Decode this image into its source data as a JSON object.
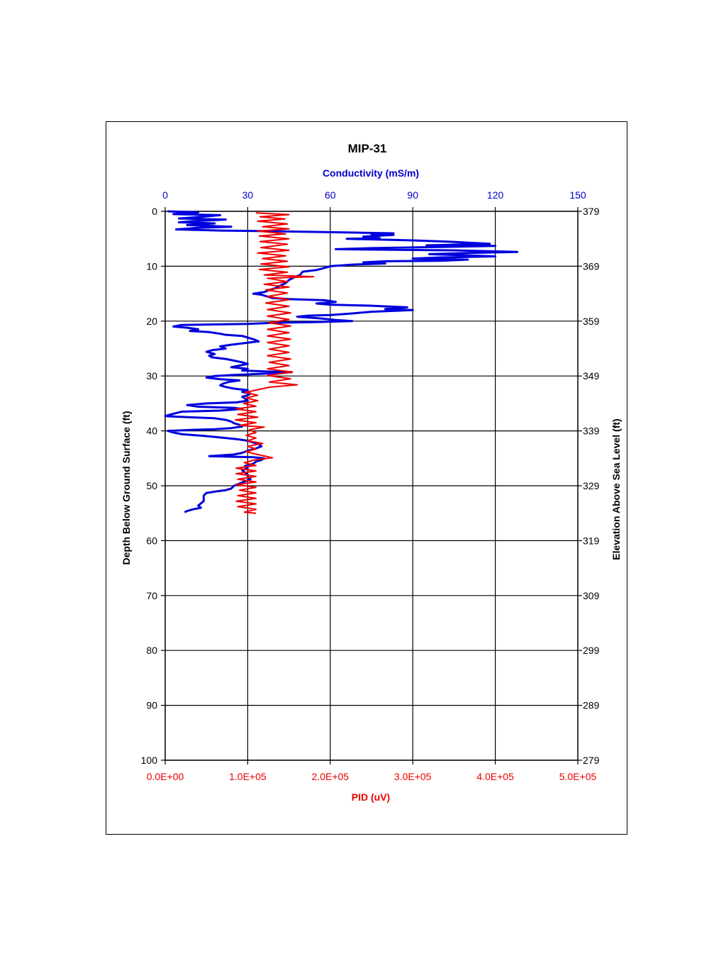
{
  "chart_data": {
    "type": "line",
    "title": "MIP-31",
    "top_axis": {
      "label": "Conductivity (mS/m)",
      "range": [
        0,
        150
      ],
      "ticks": [
        "0",
        "30",
        "60",
        "90",
        "120",
        "150"
      ],
      "color": "#0000cc"
    },
    "bottom_axis": {
      "label": "PID (uV)",
      "range": [
        0,
        500000
      ],
      "ticks": [
        "0.0E+00",
        "1.0E+05",
        "2.0E+05",
        "3.0E+05",
        "4.0E+05",
        "5.0E+05"
      ],
      "color": "#ee0000"
    },
    "left_axis": {
      "label": "Depth Below Ground Surface (ft)",
      "range": [
        0,
        100
      ],
      "inverted": true,
      "ticks": [
        "0",
        "10",
        "20",
        "30",
        "40",
        "50",
        "60",
        "70",
        "80",
        "90",
        "100"
      ]
    },
    "right_axis": {
      "label": "Elevation Above Sea Level (ft)",
      "ticks": [
        "379",
        "369",
        "359",
        "349",
        "339",
        "329",
        "319",
        "309",
        "299",
        "289",
        "279"
      ]
    },
    "grid": true,
    "series": [
      {
        "axis": "top",
        "color": "#0000dd",
        "points": [
          [
            1,
            0
          ],
          [
            12,
            0.2
          ],
          [
            3,
            0.5
          ],
          [
            20,
            0.7
          ],
          [
            13,
            1
          ],
          [
            5,
            1.3
          ],
          [
            22,
            1.5
          ],
          [
            10,
            1.8
          ],
          [
            5,
            2
          ],
          [
            18,
            2.2
          ],
          [
            8,
            2.5
          ],
          [
            24,
            2.8
          ],
          [
            12,
            3
          ],
          [
            4,
            3.3
          ],
          [
            20,
            3.5
          ],
          [
            36,
            3.6
          ],
          [
            60,
            3.8
          ],
          [
            72,
            3.9
          ],
          [
            83,
            4.0
          ],
          [
            75,
            4.2
          ],
          [
            83,
            4.3
          ],
          [
            72,
            4.6
          ],
          [
            78,
            4.9
          ],
          [
            66,
            5.0
          ],
          [
            90,
            5.3
          ],
          [
            102,
            5.5
          ],
          [
            118,
            5.9
          ],
          [
            95,
            6.2
          ],
          [
            120,
            6.3
          ],
          [
            100,
            6.5
          ],
          [
            75,
            6.7
          ],
          [
            62,
            6.9
          ],
          [
            105,
            7.1
          ],
          [
            128,
            7.4
          ],
          [
            110,
            7.6
          ],
          [
            96,
            7.8
          ],
          [
            108,
            8.0
          ],
          [
            120,
            8.2
          ],
          [
            100,
            8.4
          ],
          [
            90,
            8.6
          ],
          [
            110,
            8.8
          ],
          [
            100,
            9.0
          ],
          [
            80,
            9.1
          ],
          [
            72,
            9.3
          ],
          [
            80,
            9.5
          ],
          [
            68,
            9.7
          ],
          [
            60,
            10.0
          ],
          [
            58,
            10.3
          ],
          [
            55,
            10.7
          ],
          [
            50,
            11.0
          ],
          [
            49,
            11.6
          ],
          [
            47,
            12.0
          ],
          [
            45,
            12.5
          ],
          [
            44,
            13.0
          ],
          [
            42,
            13.5
          ],
          [
            40,
            14.0
          ],
          [
            38,
            14.3
          ],
          [
            36,
            14.7
          ],
          [
            32,
            15.0
          ],
          [
            35,
            15.2
          ],
          [
            37,
            15.5
          ],
          [
            39,
            15.8
          ],
          [
            45,
            16.0
          ],
          [
            58,
            16.2
          ],
          [
            62,
            16.5
          ],
          [
            55,
            16.8
          ],
          [
            60,
            17.0
          ],
          [
            75,
            17.2
          ],
          [
            88,
            17.5
          ],
          [
            80,
            17.8
          ],
          [
            90,
            18.0
          ],
          [
            75,
            18.3
          ],
          [
            68,
            18.6
          ],
          [
            60,
            18.9
          ],
          [
            52,
            19.0
          ],
          [
            48,
            19.2
          ],
          [
            56,
            19.5
          ],
          [
            62,
            19.8
          ],
          [
            68,
            20.0
          ],
          [
            54,
            20.2
          ],
          [
            40,
            20.3
          ],
          [
            30,
            20.5
          ],
          [
            20,
            20.6
          ],
          [
            6,
            20.7
          ],
          [
            3,
            21.0
          ],
          [
            8,
            21.2
          ],
          [
            12,
            21.5
          ],
          [
            9,
            21.8
          ],
          [
            16,
            22.0
          ],
          [
            20,
            22.3
          ],
          [
            22,
            22.5
          ],
          [
            28,
            22.7
          ],
          [
            30,
            23.0
          ],
          [
            32,
            23.3
          ],
          [
            34,
            23.7
          ],
          [
            29,
            24.0
          ],
          [
            24,
            24.3
          ],
          [
            20,
            24.6
          ],
          [
            22,
            25.0
          ],
          [
            17,
            25.3
          ],
          [
            15,
            25.6
          ],
          [
            18,
            26.0
          ],
          [
            16,
            26.3
          ],
          [
            17,
            26.6
          ],
          [
            22,
            26.9
          ],
          [
            25,
            27.2
          ],
          [
            28,
            27.5
          ],
          [
            30,
            27.8
          ],
          [
            27,
            28.1
          ],
          [
            24,
            28.4
          ],
          [
            30,
            28.7
          ],
          [
            28,
            29.0
          ],
          [
            38,
            29.2
          ],
          [
            46,
            29.3
          ],
          [
            35,
            29.6
          ],
          [
            25,
            29.8
          ],
          [
            18,
            30.0
          ],
          [
            15,
            30.3
          ],
          [
            20,
            30.6
          ],
          [
            27,
            30.8
          ],
          [
            23,
            31.1
          ],
          [
            21,
            31.4
          ],
          [
            20,
            31.7
          ],
          [
            22,
            32.0
          ],
          [
            25,
            32.3
          ],
          [
            30,
            32.6
          ],
          [
            28,
            32.9
          ],
          [
            31,
            33.2
          ],
          [
            30,
            33.5
          ],
          [
            28,
            33.8
          ],
          [
            29,
            34.1
          ],
          [
            30,
            34.5
          ],
          [
            26,
            34.8
          ],
          [
            15,
            35.0
          ],
          [
            8,
            35.3
          ],
          [
            12,
            35.6
          ],
          [
            25,
            35.8
          ],
          [
            28,
            36.0
          ],
          [
            20,
            36.3
          ],
          [
            6,
            36.5
          ],
          [
            2,
            37.0
          ],
          [
            0,
            37.3
          ],
          [
            8,
            37.5
          ],
          [
            18,
            37.7
          ],
          [
            22,
            38.0
          ],
          [
            24,
            38.3
          ],
          [
            25,
            38.6
          ],
          [
            27,
            38.9
          ],
          [
            28,
            39.2
          ],
          [
            24,
            39.5
          ],
          [
            18,
            39.7
          ],
          [
            10,
            39.8
          ],
          [
            1,
            40.0
          ],
          [
            3,
            40.3
          ],
          [
            6,
            40.6
          ],
          [
            14,
            40.9
          ],
          [
            20,
            41.2
          ],
          [
            26,
            41.5
          ],
          [
            30,
            41.8
          ],
          [
            32,
            42.1
          ],
          [
            34,
            42.4
          ],
          [
            35,
            42.8
          ],
          [
            33,
            43.2
          ],
          [
            30,
            43.6
          ],
          [
            28,
            44.0
          ],
          [
            25,
            44.3
          ],
          [
            16,
            44.6
          ],
          [
            32,
            44.8
          ],
          [
            36,
            45.0
          ],
          [
            35,
            45.3
          ],
          [
            33,
            45.6
          ],
          [
            32,
            46.0
          ],
          [
            29,
            46.4
          ],
          [
            30,
            46.8
          ],
          [
            28,
            47.2
          ],
          [
            29,
            47.6
          ],
          [
            30,
            48.0
          ],
          [
            30,
            48.4
          ],
          [
            31,
            48.8
          ],
          [
            29,
            49.2
          ],
          [
            27,
            49.6
          ],
          [
            25,
            50.0
          ],
          [
            24,
            50.5
          ],
          [
            22,
            50.8
          ],
          [
            19,
            51.0
          ],
          [
            15,
            51.3
          ],
          [
            14,
            51.8
          ],
          [
            14,
            52.3
          ],
          [
            14,
            52.8
          ],
          [
            13,
            53.2
          ],
          [
            12,
            53.6
          ],
          [
            13,
            54.0
          ],
          [
            10,
            54.3
          ],
          [
            8,
            54.6
          ],
          [
            7,
            54.8
          ]
        ]
      },
      {
        "axis": "bottom",
        "color": "#ee0000",
        "points": [
          [
            110000,
            0.3
          ],
          [
            150000,
            0.6
          ],
          [
            115000,
            1
          ],
          [
            145000,
            1.4
          ],
          [
            112000,
            1.8
          ],
          [
            148000,
            2.3
          ],
          [
            118000,
            2.8
          ],
          [
            150000,
            3.2
          ],
          [
            112000,
            3.6
          ],
          [
            146000,
            4.1
          ],
          [
            114000,
            4.5
          ],
          [
            150000,
            5.0
          ],
          [
            115000,
            5.5
          ],
          [
            148000,
            6.0
          ],
          [
            116000,
            6.6
          ],
          [
            150000,
            7.1
          ],
          [
            112000,
            7.6
          ],
          [
            146000,
            8.1
          ],
          [
            118000,
            8.6
          ],
          [
            148000,
            9.1
          ],
          [
            116000,
            9.6
          ],
          [
            150000,
            10.1
          ],
          [
            114000,
            10.6
          ],
          [
            148000,
            11.1
          ],
          [
            120000,
            11.6
          ],
          [
            180000,
            11.9
          ],
          [
            124000,
            12.2
          ],
          [
            148000,
            12.8
          ],
          [
            120000,
            13.3
          ],
          [
            150000,
            13.8
          ],
          [
            122000,
            14.3
          ],
          [
            148000,
            14.9
          ],
          [
            124000,
            15.5
          ],
          [
            150000,
            16.1
          ],
          [
            122000,
            16.7
          ],
          [
            150000,
            17.3
          ],
          [
            124000,
            17.9
          ],
          [
            152000,
            18.5
          ],
          [
            124000,
            19.1
          ],
          [
            150000,
            19.7
          ],
          [
            126000,
            20.3
          ],
          [
            152000,
            20.9
          ],
          [
            124000,
            21.5
          ],
          [
            150000,
            22.1
          ],
          [
            124000,
            22.7
          ],
          [
            152000,
            23.3
          ],
          [
            124000,
            23.9
          ],
          [
            150000,
            24.5
          ],
          [
            126000,
            25.1
          ],
          [
            150000,
            25.7
          ],
          [
            124000,
            26.3
          ],
          [
            152000,
            26.9
          ],
          [
            126000,
            27.5
          ],
          [
            150000,
            28.1
          ],
          [
            124000,
            28.7
          ],
          [
            154000,
            29.3
          ],
          [
            124000,
            29.9
          ],
          [
            152000,
            30.5
          ],
          [
            126000,
            31.1
          ],
          [
            160000,
            31.6
          ],
          [
            128000,
            32.0
          ],
          [
            112000,
            32.5
          ],
          [
            97000,
            33.0
          ],
          [
            112000,
            33.5
          ],
          [
            98000,
            34.0
          ],
          [
            112000,
            34.5
          ],
          [
            95000,
            35.0
          ],
          [
            110000,
            35.5
          ],
          [
            86000,
            36.0
          ],
          [
            110000,
            36.5
          ],
          [
            88000,
            37.0
          ],
          [
            112000,
            37.5
          ],
          [
            85000,
            38.0
          ],
          [
            110000,
            38.5
          ],
          [
            90000,
            39.0
          ],
          [
            120000,
            39.3
          ],
          [
            102000,
            39.8
          ],
          [
            110000,
            40.3
          ],
          [
            98000,
            40.8
          ],
          [
            110000,
            41.3
          ],
          [
            100000,
            41.8
          ],
          [
            118000,
            42.3
          ],
          [
            100000,
            42.8
          ],
          [
            110000,
            43.3
          ],
          [
            98000,
            43.8
          ],
          [
            112000,
            44.3
          ],
          [
            130000,
            44.9
          ],
          [
            108000,
            45.3
          ],
          [
            96000,
            45.8
          ],
          [
            110000,
            46.3
          ],
          [
            86000,
            46.8
          ],
          [
            110000,
            47.3
          ],
          [
            86000,
            47.8
          ],
          [
            110000,
            48.3
          ],
          [
            88000,
            48.8
          ],
          [
            110000,
            49.3
          ],
          [
            86000,
            49.8
          ],
          [
            110000,
            50.3
          ],
          [
            90000,
            50.8
          ],
          [
            110000,
            51.3
          ],
          [
            88000,
            51.8
          ],
          [
            110000,
            52.3
          ],
          [
            86000,
            52.8
          ],
          [
            110000,
            53.3
          ],
          [
            88000,
            53.8
          ],
          [
            110000,
            54.3
          ],
          [
            96000,
            54.8
          ],
          [
            110000,
            55.0
          ]
        ]
      }
    ]
  }
}
